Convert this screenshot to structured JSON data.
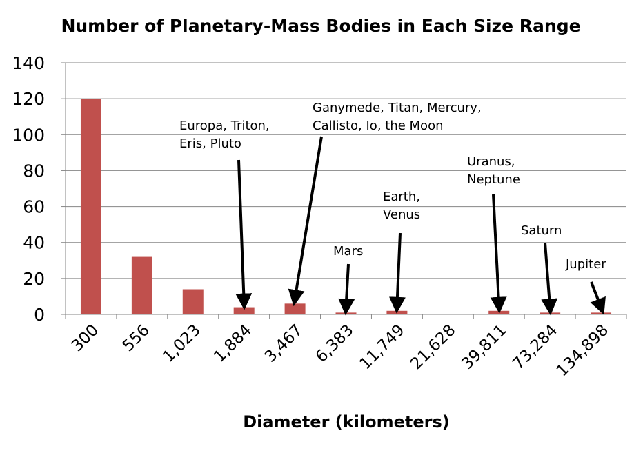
{
  "chart_data": {
    "type": "bar",
    "title": "Number of Planetary-Mass Bodies in Each Size Range",
    "xlabel": "Diameter (kilometers)",
    "ylabel": "",
    "categories": [
      "300",
      "556",
      "1,023",
      "1,884",
      "3,467",
      "6,383",
      "11,749",
      "21,628",
      "39,811",
      "73,284",
      "134,898"
    ],
    "values": [
      120,
      32,
      14,
      4,
      6,
      1,
      2,
      0,
      2,
      1,
      1
    ],
    "ylim": [
      0,
      140
    ],
    "yticks": [
      "0",
      "20",
      "40",
      "60",
      "80",
      "100",
      "120",
      "140"
    ],
    "grid": true,
    "legend": "none",
    "bar_color": "#c0504d",
    "annotations": [
      {
        "category_index": 3,
        "lines": [
          "Europa, Triton,",
          "Eris, Pluto"
        ]
      },
      {
        "category_index": 4,
        "lines": [
          "Ganymede, Titan, Mercury,",
          "Callisto, Io, the Moon"
        ]
      },
      {
        "category_index": 5,
        "lines": [
          "Mars"
        ]
      },
      {
        "category_index": 6,
        "lines": [
          "Earth,",
          "Venus"
        ]
      },
      {
        "category_index": 8,
        "lines": [
          "Uranus,",
          "Neptune"
        ]
      },
      {
        "category_index": 9,
        "lines": [
          "Saturn"
        ]
      },
      {
        "category_index": 10,
        "lines": [
          "Jupiter"
        ]
      }
    ]
  }
}
